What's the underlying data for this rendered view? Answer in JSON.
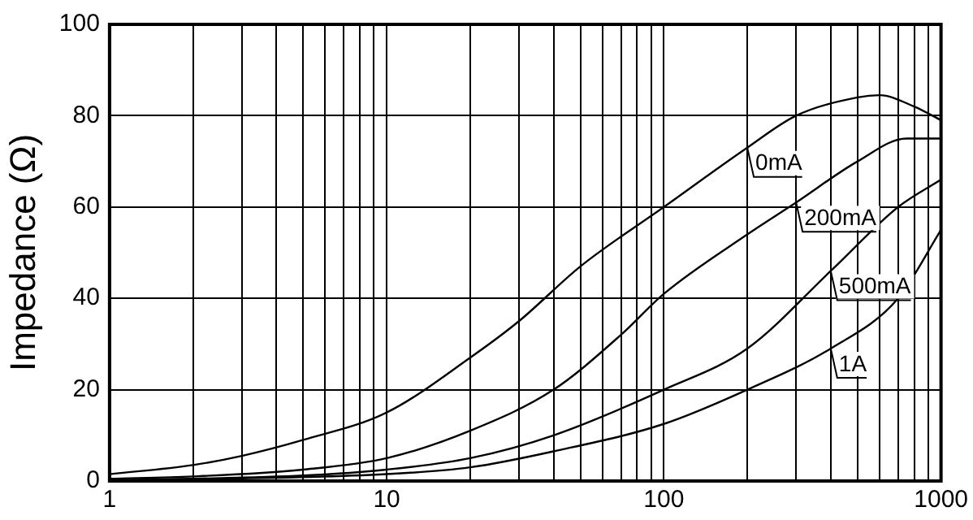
{
  "chart_data": {
    "type": "line",
    "ylabel": "Impedance (Ω)",
    "log": "x",
    "grid": true,
    "legend": false,
    "marker": "none",
    "line_style": "solid",
    "xlim": [
      1,
      1000
    ],
    "ylim": [
      0,
      100
    ],
    "yticks": [
      0,
      20,
      40,
      60,
      80,
      100
    ],
    "xticks": [
      1,
      {
        "value": 2,
        "label": null
      },
      {
        "value": 3,
        "label": null
      },
      {
        "value": 4,
        "label": null
      },
      {
        "value": 5,
        "label": null
      },
      {
        "value": 6,
        "label": null
      },
      {
        "value": 7,
        "label": null
      },
      {
        "value": 8,
        "label": null
      },
      {
        "value": 9,
        "label": null
      },
      10,
      {
        "value": 20,
        "label": null
      },
      {
        "value": 30,
        "label": null
      },
      {
        "value": 40,
        "label": null
      },
      {
        "value": 50,
        "label": null
      },
      {
        "value": 60,
        "label": null
      },
      {
        "value": 70,
        "label": null
      },
      {
        "value": 80,
        "label": null
      },
      {
        "value": 90,
        "label": null
      },
      100,
      {
        "value": 200,
        "label": null
      },
      {
        "value": 300,
        "label": null
      },
      {
        "value": 400,
        "label": null
      },
      {
        "value": 500,
        "label": null
      },
      {
        "value": 600,
        "label": null
      },
      {
        "value": 700,
        "label": null
      },
      {
        "value": 800,
        "label": null
      },
      {
        "value": 900,
        "label": null
      },
      1000
    ],
    "series": [
      {
        "name": "0mA",
        "color": "#000000",
        "x": [
          1,
          2,
          3,
          5,
          10,
          20,
          30,
          50,
          100,
          200,
          300,
          500,
          600,
          800,
          1000
        ],
        "values": [
          1.5,
          3.5,
          5.5,
          9,
          15,
          27,
          35,
          47,
          60,
          73,
          80,
          84,
          84.5,
          82,
          79
        ]
      },
      {
        "name": "200mA",
        "color": "#000000",
        "x": [
          1,
          2,
          5,
          10,
          20,
          40,
          70,
          100,
          200,
          300,
          500,
          750,
          1000
        ],
        "values": [
          0.5,
          1,
          2.5,
          5,
          11,
          20,
          32,
          41,
          54,
          61,
          70,
          75,
          75
        ]
      },
      {
        "name": "500mA",
        "color": "#000000",
        "x": [
          1,
          2,
          5,
          10,
          20,
          40,
          100,
          200,
          400,
          700,
          1000
        ],
        "values": [
          0.2,
          0.5,
          1.2,
          2.5,
          5,
          10,
          20,
          29,
          46,
          60,
          66
        ]
      },
      {
        "name": "1A",
        "color": "#000000",
        "x": [
          1,
          10,
          20,
          40,
          100,
          200,
          400,
          700,
          1000
        ],
        "values": [
          0.1,
          1.5,
          3,
          6.5,
          12.5,
          20,
          29,
          40,
          55
        ]
      }
    ]
  }
}
